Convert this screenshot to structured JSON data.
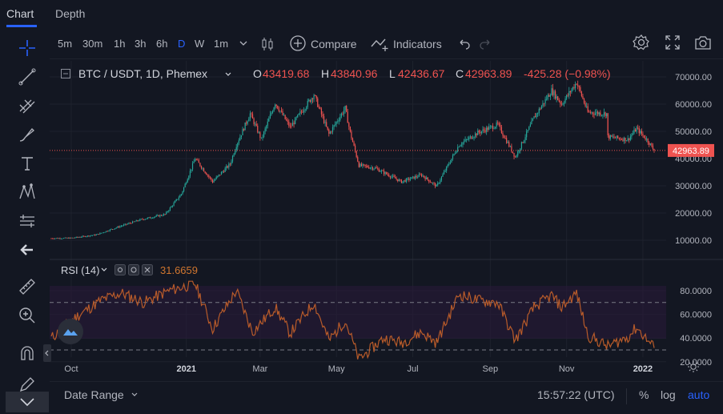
{
  "tabs": [
    {
      "label": "Chart"
    },
    {
      "label": "Depth"
    }
  ],
  "timeframes": [
    {
      "label": "5m"
    },
    {
      "label": "30m"
    },
    {
      "label": "1h"
    },
    {
      "label": "3h"
    },
    {
      "label": "6h"
    },
    {
      "label": "D",
      "active": true
    },
    {
      "label": "W"
    },
    {
      "label": "1m"
    }
  ],
  "toolbar": {
    "compare_label": "Compare",
    "indicators_label": "Indicators"
  },
  "legend": {
    "symbol": "BTC / USDT, 1D, Phemex",
    "o_label": "O",
    "o_value": "43419.68",
    "h_label": "H",
    "h_value": "43840.96",
    "l_label": "L",
    "l_value": "42436.67",
    "c_label": "C",
    "c_value": "42963.89",
    "change": "-425.28 (−0.98%)"
  },
  "rsi": {
    "label": "RSI (14)",
    "value": "31.6659"
  },
  "bottom": {
    "date_range": "Date Range",
    "time": "15:57:22 (UTC)",
    "percent": "%",
    "log": "log",
    "auto": "auto"
  },
  "colors": {
    "background": "#131722",
    "up": "#26a69a",
    "down": "#ef5350",
    "rsi_line": "#b85b2a",
    "accent": "#2962ff"
  },
  "chart_data": [
    {
      "type": "candlestick",
      "title": "BTC / USDT, 1D, Phemex",
      "x_ticks": [
        "Oct",
        "2021",
        "Mar",
        "May",
        "Jul",
        "Sep",
        "Nov",
        "2022"
      ],
      "y_ticks": [
        "70000.00",
        "60000.00",
        "50000.00",
        "40000.00",
        "30000.00",
        "20000.00",
        "10000.00"
      ],
      "ylim": [
        5000,
        73000
      ],
      "last_price": "42963.89",
      "price_path": [
        [
          "2020-09-15",
          10700
        ],
        [
          "2020-10-01",
          10800
        ],
        [
          "2020-10-21",
          12000
        ],
        [
          "2020-11-05",
          14500
        ],
        [
          "2020-11-25",
          17500
        ],
        [
          "2020-12-15",
          19500
        ],
        [
          "2020-12-28",
          27000
        ],
        [
          "2021-01-08",
          40000
        ],
        [
          "2021-01-22",
          31500
        ],
        [
          "2021-02-05",
          38000
        ],
        [
          "2021-02-10",
          45000
        ],
        [
          "2021-02-21",
          56500
        ],
        [
          "2021-03-02",
          47000
        ],
        [
          "2021-03-13",
          60500
        ],
        [
          "2021-03-25",
          51500
        ],
        [
          "2021-04-13",
          63500
        ],
        [
          "2021-04-25",
          49000
        ],
        [
          "2021-05-08",
          58500
        ],
        [
          "2021-05-12",
          49500
        ],
        [
          "2021-05-19",
          37500
        ],
        [
          "2021-06-01",
          36500
        ],
        [
          "2021-06-22",
          31500
        ],
        [
          "2021-07-08",
          34000
        ],
        [
          "2021-07-20",
          29800
        ],
        [
          "2021-08-07",
          45000
        ],
        [
          "2021-08-22",
          49500
        ],
        [
          "2021-09-07",
          52500
        ],
        [
          "2021-09-21",
          40500
        ],
        [
          "2021-10-06",
          55000
        ],
        [
          "2021-10-20",
          65000
        ],
        [
          "2021-10-28",
          60000
        ],
        [
          "2021-11-09",
          68000
        ],
        [
          "2021-11-18",
          57000
        ],
        [
          "2021-12-03",
          56500
        ],
        [
          "2021-12-04",
          48000
        ],
        [
          "2021-12-20",
          47000
        ],
        [
          "2021-12-27",
          51000
        ],
        [
          "2022-01-05",
          46500
        ],
        [
          "2022-01-10",
          42963.89
        ]
      ]
    },
    {
      "type": "line",
      "title": "RSI (14)",
      "y_ticks": [
        "80.0000",
        "60.0000",
        "40.0000",
        "20.0000"
      ],
      "ylim": [
        17,
        86
      ],
      "bands": [
        70,
        30
      ],
      "last_value": 31.6659,
      "rsi_path": [
        [
          "2020-09-15",
          40
        ],
        [
          "2020-10-05",
          58
        ],
        [
          "2020-10-25",
          72
        ],
        [
          "2020-11-10",
          78
        ],
        [
          "2020-11-28",
          70
        ],
        [
          "2020-12-18",
          80
        ],
        [
          "2021-01-08",
          86
        ],
        [
          "2021-01-22",
          48
        ],
        [
          "2021-02-10",
          80
        ],
        [
          "2021-02-23",
          45
        ],
        [
          "2021-03-13",
          66
        ],
        [
          "2021-03-25",
          44
        ],
        [
          "2021-04-13",
          70
        ],
        [
          "2021-04-25",
          38
        ],
        [
          "2021-05-08",
          55
        ],
        [
          "2021-05-19",
          22
        ],
        [
          "2021-06-08",
          40
        ],
        [
          "2021-06-22",
          36
        ],
        [
          "2021-07-08",
          45
        ],
        [
          "2021-07-20",
          36
        ],
        [
          "2021-08-07",
          77
        ],
        [
          "2021-08-22",
          72
        ],
        [
          "2021-09-07",
          70
        ],
        [
          "2021-09-21",
          38
        ],
        [
          "2021-10-06",
          66
        ],
        [
          "2021-10-20",
          76
        ],
        [
          "2021-10-28",
          66
        ],
        [
          "2021-11-09",
          78
        ],
        [
          "2021-11-18",
          42
        ],
        [
          "2021-12-04",
          33
        ],
        [
          "2021-12-20",
          41
        ],
        [
          "2021-12-27",
          49
        ],
        [
          "2022-01-10",
          31.6659
        ]
      ]
    }
  ]
}
